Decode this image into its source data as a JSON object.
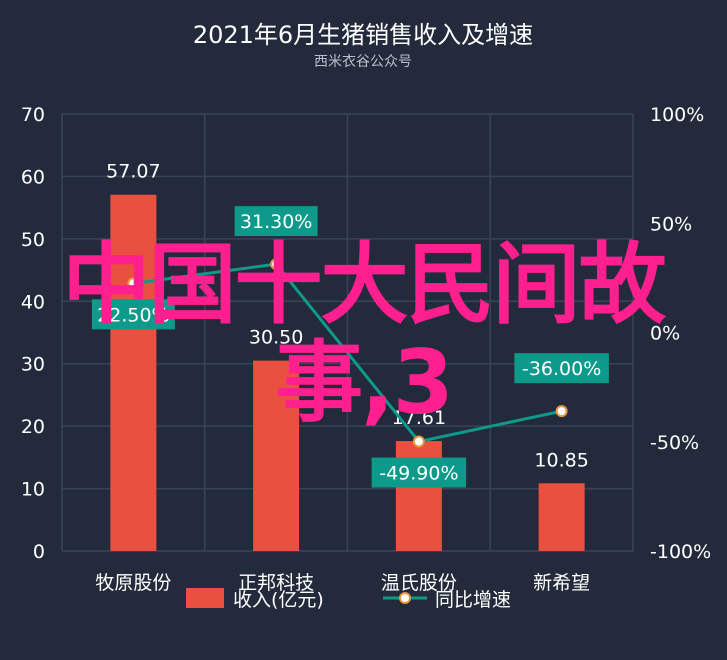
{
  "chart_data": {
    "type": "bar",
    "title": "2021年6月生猪销售收入及增速",
    "subtitle": "西米衣谷公众号",
    "categories": [
      "牧原股份",
      "正邦科技",
      "温氏股份",
      "新希望"
    ],
    "series": [
      {
        "name": "收入(亿元)",
        "type": "bar",
        "axis": "left",
        "values": [
          57.07,
          30.5,
          17.61,
          10.85
        ],
        "labels": [
          "57.07",
          "30.50",
          "17.61",
          "10.85"
        ],
        "color": "#e9503f"
      },
      {
        "name": "同比增速",
        "type": "line",
        "axis": "right",
        "values": [
          22.5,
          31.3,
          -49.9,
          -36.0
        ],
        "labels": [
          "22.50%",
          "31.30%",
          "-49.90%",
          "-36.00%"
        ],
        "color": "#0e9a8a"
      }
    ],
    "y_left": {
      "min": 0,
      "max": 70,
      "ticks": [
        "0",
        "10",
        "20",
        "30",
        "40",
        "50",
        "60",
        "70"
      ]
    },
    "y_right": {
      "min": -100,
      "max": 100,
      "ticks": [
        "-100%",
        "-50%",
        "0%",
        "50%",
        "100%"
      ]
    },
    "grid": true,
    "legend_position": "bottom"
  },
  "overlay": {
    "line1": "中国十大民间故",
    "line2": "事,3"
  }
}
